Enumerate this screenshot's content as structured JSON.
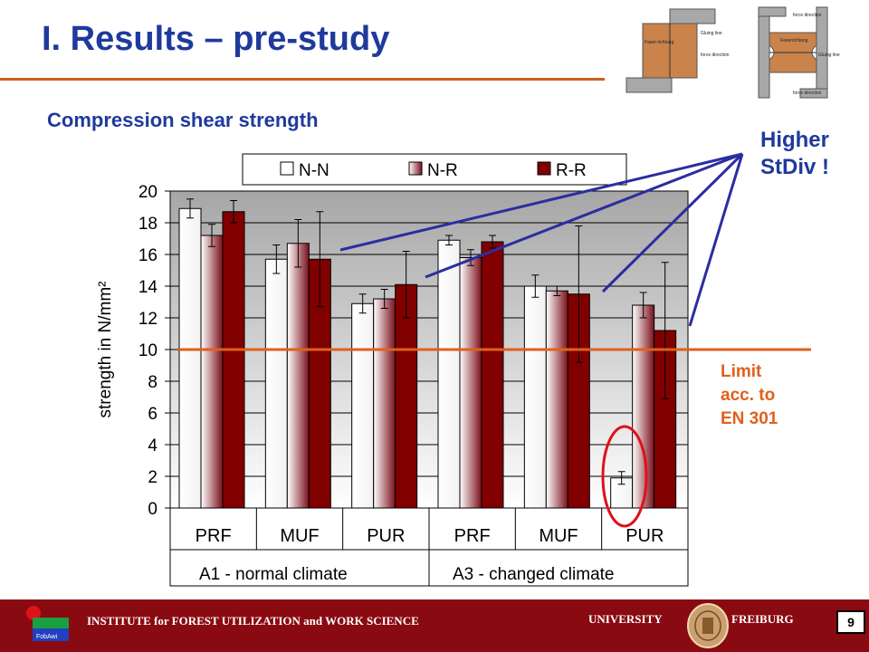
{
  "slide": {
    "title": "I. Results – pre-study",
    "subtitle": "Compression shear strength",
    "note_higher_line1": "Higher",
    "note_higher_line2": "StDiv !",
    "note_limit_line1": "Limit",
    "note_limit_line2": "acc. to",
    "note_limit_line3": "EN 301",
    "colors": {
      "title": "#1f3a9c",
      "accent": "#e0601c",
      "footer": "#8a0a12"
    }
  },
  "diagrams": {
    "left": {
      "label1": "Faser-richtung",
      "label2": "Gluing line",
      "label3": "force direction"
    },
    "right": {
      "label1": "force direction",
      "label2": "Faserrichtung",
      "label3": "Gluing line",
      "label4": "force direction"
    }
  },
  "chart_data": {
    "type": "bar",
    "ylabel": "strength in N/mm²",
    "ylim": [
      0,
      20
    ],
    "yticks": [
      0,
      2,
      4,
      6,
      8,
      10,
      12,
      14,
      16,
      18,
      20
    ],
    "categories": [
      "PRF",
      "MUF",
      "PUR",
      "PRF",
      "MUF",
      "PUR"
    ],
    "groups": [
      {
        "label": "A1 - normal climate"
      },
      {
        "label": "A3 - changed climate"
      }
    ],
    "series": [
      {
        "name": "N-N",
        "values": [
          18.9,
          15.7,
          12.9,
          16.9,
          14.0,
          1.9
        ],
        "errors": [
          0.6,
          0.9,
          0.6,
          0.3,
          0.7,
          0.4
        ]
      },
      {
        "name": "N-R",
        "values": [
          17.2,
          16.7,
          13.2,
          15.8,
          13.7,
          12.8
        ],
        "errors": [
          0.7,
          1.5,
          0.6,
          0.5,
          0.3,
          0.8
        ]
      },
      {
        "name": "R-R",
        "values": [
          18.7,
          15.7,
          14.1,
          16.8,
          13.5,
          11.2
        ],
        "errors": [
          0.7,
          3.0,
          2.1,
          0.4,
          4.3,
          4.3
        ]
      }
    ],
    "limit": 10,
    "grid": true,
    "legend_position": "top"
  },
  "footer": {
    "institute": "INSTITUTE for FOREST UTILIZATION and WORK SCIENCE",
    "university": "UNIVERSITY",
    "city": "FREIBURG",
    "page": "9",
    "logo_text": "FobAwi"
  }
}
